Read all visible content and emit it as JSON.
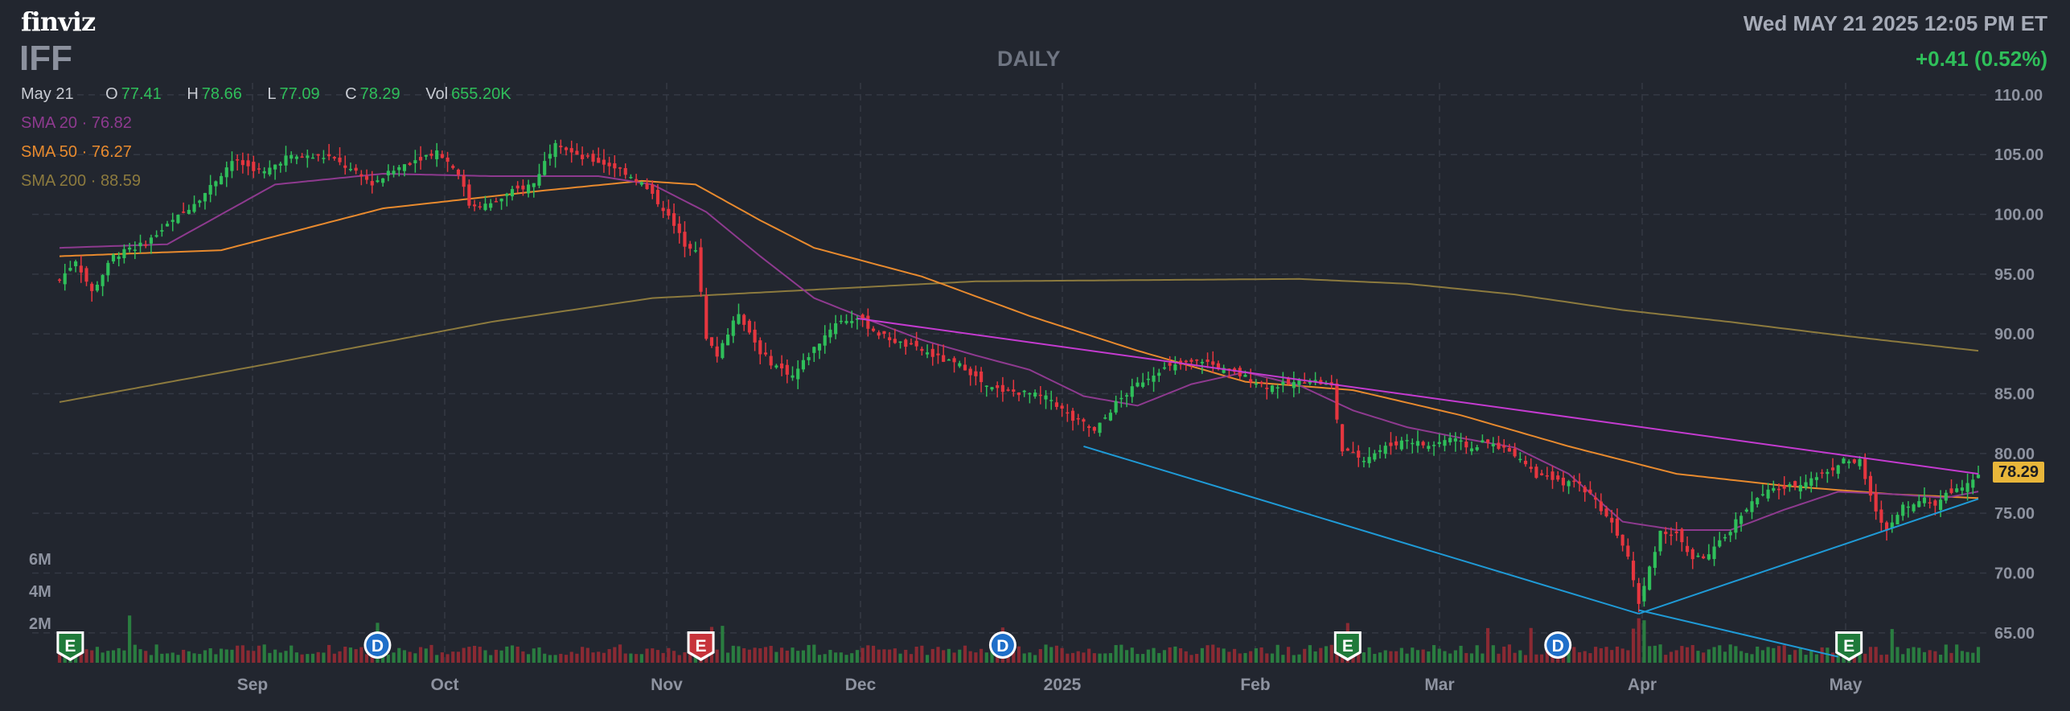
{
  "header": {
    "logo": "finviz",
    "ticker": "IFF",
    "timeframe": "DAILY",
    "datetime": "Wed MAY 21 2025 12:05 PM ET",
    "change": "+0.41 (0.52%)"
  },
  "ohlc": {
    "date": "May 21",
    "open_label": "O",
    "open": "77.41",
    "high_label": "H",
    "high": "78.66",
    "low_label": "L",
    "low": "77.09",
    "close_label": "C",
    "close": "78.29",
    "vol_label": "Vol",
    "vol": "655.20K"
  },
  "indicators": [
    {
      "name": "SMA 20",
      "value": "76.82",
      "color": "#8e3a8f"
    },
    {
      "name": "SMA 50",
      "value": "76.27",
      "color": "#e88a2e"
    },
    {
      "name": "SMA 200",
      "value": "88.59",
      "color": "#8c7a3e"
    }
  ],
  "colors": {
    "up": "#2fbf5a",
    "down": "#e5363f",
    "vol_up": "#2a7d40",
    "vol_down": "#8a2a33",
    "trend_upper": "#c43bd0",
    "trend_lower": "#1f9ad6",
    "grid": "#343944",
    "axis_text": "#8e93a0"
  },
  "chart_data": {
    "type": "candlestick",
    "title": "IFF",
    "interval": "DAILY",
    "ylim": [
      62.5,
      111
    ],
    "y_ticks": [
      "110.00",
      "105.00",
      "100.00",
      "95.00",
      "90.00",
      "85.00",
      "80.00",
      "75.00",
      "70.00",
      "65.00"
    ],
    "x_ticks": [
      "Sep",
      "Oct",
      "Nov",
      "Dec",
      "2025",
      "Feb",
      "Mar",
      "Apr",
      "May"
    ],
    "volume_ticks": [
      "6M",
      "4M",
      "2M"
    ],
    "last_price": "78.29",
    "grid": true,
    "price_anchors": [
      [
        0,
        94.5
      ],
      [
        3,
        96.2
      ],
      [
        6,
        93.5
      ],
      [
        10,
        96.5
      ],
      [
        16,
        97.6
      ],
      [
        22,
        99.8
      ],
      [
        27,
        101.8
      ],
      [
        32,
        104.5
      ],
      [
        38,
        103.5
      ],
      [
        42,
        104.8
      ],
      [
        50,
        104.8
      ],
      [
        58,
        102.6
      ],
      [
        64,
        104.2
      ],
      [
        70,
        105.3
      ],
      [
        74,
        103.5
      ],
      [
        76,
        100.8
      ],
      [
        80,
        100.8
      ],
      [
        84,
        101.9
      ],
      [
        88,
        102.6
      ],
      [
        92,
        106.2
      ],
      [
        96,
        104.8
      ],
      [
        100,
        104.4
      ],
      [
        104,
        103.8
      ],
      [
        108,
        102.6
      ],
      [
        112,
        100.5
      ],
      [
        116,
        97.5
      ],
      [
        118,
        97.2
      ],
      [
        120,
        89.5
      ],
      [
        122,
        88.2
      ],
      [
        126,
        91.8
      ],
      [
        130,
        88.5
      ],
      [
        132,
        87.6
      ],
      [
        136,
        86.5
      ],
      [
        140,
        88.8
      ],
      [
        144,
        91.0
      ],
      [
        148,
        91.3
      ],
      [
        152,
        90.0
      ],
      [
        156,
        89.2
      ],
      [
        160,
        88.6
      ],
      [
        164,
        87.8
      ],
      [
        168,
        87.2
      ],
      [
        172,
        85.5
      ],
      [
        176,
        85.2
      ],
      [
        180,
        85.0
      ],
      [
        184,
        84.5
      ],
      [
        188,
        82.8
      ],
      [
        190,
        82.5
      ],
      [
        192,
        81.8
      ],
      [
        196,
        84.2
      ],
      [
        200,
        85.8
      ],
      [
        204,
        87.0
      ],
      [
        208,
        87.4
      ],
      [
        212,
        87.8
      ],
      [
        216,
        87.0
      ],
      [
        220,
        86.4
      ],
      [
        224,
        85.6
      ],
      [
        228,
        85.8
      ],
      [
        232,
        86.2
      ],
      [
        236,
        85.6
      ],
      [
        238,
        80.2
      ],
      [
        242,
        79.6
      ],
      [
        246,
        80.5
      ],
      [
        250,
        81.2
      ],
      [
        254,
        80.6
      ],
      [
        258,
        81.3
      ],
      [
        262,
        80.4
      ],
      [
        264,
        81.0
      ],
      [
        268,
        80.4
      ],
      [
        270,
        80.0
      ],
      [
        274,
        78.2
      ],
      [
        278,
        77.6
      ],
      [
        282,
        77.4
      ],
      [
        284,
        76.6
      ],
      [
        288,
        74.2
      ],
      [
        291,
        71.6
      ],
      [
        293,
        67.5
      ],
      [
        295,
        70.5
      ],
      [
        297,
        73.5
      ],
      [
        300,
        73.2
      ],
      [
        303,
        71.2
      ],
      [
        306,
        71.5
      ],
      [
        309,
        73.0
      ],
      [
        312,
        75.0
      ],
      [
        315,
        76.3
      ],
      [
        318,
        77.0
      ],
      [
        321,
        77.2
      ],
      [
        325,
        77.9
      ],
      [
        328,
        78.5
      ],
      [
        331,
        79.4
      ],
      [
        334,
        79.3
      ],
      [
        337,
        75.0
      ],
      [
        339,
        73.6
      ],
      [
        342,
        75.5
      ],
      [
        345,
        76.2
      ],
      [
        348,
        75.8
      ],
      [
        350,
        76.6
      ],
      [
        353,
        77.4
      ],
      [
        356,
        78.29
      ]
    ],
    "sma20_anchors": [
      [
        0,
        97.2
      ],
      [
        20,
        97.5
      ],
      [
        40,
        102.5
      ],
      [
        60,
        103.4
      ],
      [
        80,
        103.2
      ],
      [
        100,
        103.2
      ],
      [
        110,
        102.5
      ],
      [
        120,
        100.2
      ],
      [
        130,
        96.5
      ],
      [
        140,
        93.0
      ],
      [
        150,
        91.2
      ],
      [
        160,
        89.5
      ],
      [
        170,
        88.2
      ],
      [
        180,
        87.0
      ],
      [
        190,
        84.8
      ],
      [
        200,
        84.0
      ],
      [
        210,
        85.8
      ],
      [
        220,
        86.8
      ],
      [
        230,
        85.7
      ],
      [
        240,
        83.6
      ],
      [
        250,
        82.2
      ],
      [
        260,
        81.3
      ],
      [
        270,
        80.5
      ],
      [
        280,
        78.3
      ],
      [
        290,
        74.3
      ],
      [
        300,
        73.6
      ],
      [
        310,
        73.6
      ],
      [
        320,
        75.3
      ],
      [
        330,
        76.8
      ],
      [
        340,
        76.6
      ],
      [
        350,
        76.3
      ],
      [
        356,
        76.82
      ]
    ],
    "sma50_anchors": [
      [
        0,
        96.5
      ],
      [
        30,
        97.0
      ],
      [
        60,
        100.5
      ],
      [
        90,
        102.0
      ],
      [
        108,
        102.8
      ],
      [
        118,
        102.5
      ],
      [
        130,
        99.5
      ],
      [
        140,
        97.2
      ],
      [
        160,
        94.8
      ],
      [
        180,
        91.5
      ],
      [
        200,
        88.6
      ],
      [
        220,
        86.0
      ],
      [
        240,
        85.3
      ],
      [
        260,
        83.2
      ],
      [
        280,
        80.6
      ],
      [
        300,
        78.3
      ],
      [
        320,
        77.3
      ],
      [
        340,
        76.6
      ],
      [
        356,
        76.27
      ]
    ],
    "sma200_anchors": [
      [
        0,
        84.3
      ],
      [
        40,
        87.6
      ],
      [
        80,
        91.0
      ],
      [
        110,
        93.0
      ],
      [
        140,
        93.7
      ],
      [
        170,
        94.4
      ],
      [
        200,
        94.5
      ],
      [
        230,
        94.6
      ],
      [
        250,
        94.2
      ],
      [
        270,
        93.3
      ],
      [
        290,
        92.0
      ],
      [
        310,
        91.0
      ],
      [
        330,
        89.9
      ],
      [
        356,
        88.59
      ]
    ],
    "trendlines": [
      {
        "color_key": "trend_upper",
        "points": [
          [
            148,
            91.3
          ],
          [
            356,
            78.3
          ]
        ]
      },
      {
        "color_key": "trend_lower",
        "points": [
          [
            190,
            80.6
          ],
          [
            293,
            66.6
          ]
        ]
      },
      {
        "color_key": "trend_lower",
        "points": [
          [
            293,
            66.6
          ],
          [
            356,
            76.2
          ]
        ]
      },
      {
        "color_key": "trend_lower",
        "points": [
          [
            293,
            66.9
          ],
          [
            330,
            63.0
          ]
        ]
      }
    ],
    "events": [
      {
        "label": "E",
        "kind": "earnings",
        "color": "#1f7a3a",
        "bar": 2
      },
      {
        "label": "D",
        "kind": "dividend",
        "color": "#1f6fc9",
        "bar": 59
      },
      {
        "label": "E",
        "kind": "earnings",
        "color": "#c7343b",
        "bar": 119
      },
      {
        "label": "D",
        "kind": "dividend",
        "color": "#1f6fc9",
        "bar": 175
      },
      {
        "label": "E",
        "kind": "earnings",
        "color": "#1f7a3a",
        "bar": 239
      },
      {
        "label": "D",
        "kind": "dividend",
        "color": "#1f6fc9",
        "bar": 278
      },
      {
        "label": "E",
        "kind": "earnings",
        "color": "#1f7a3a",
        "bar": 332
      }
    ]
  }
}
